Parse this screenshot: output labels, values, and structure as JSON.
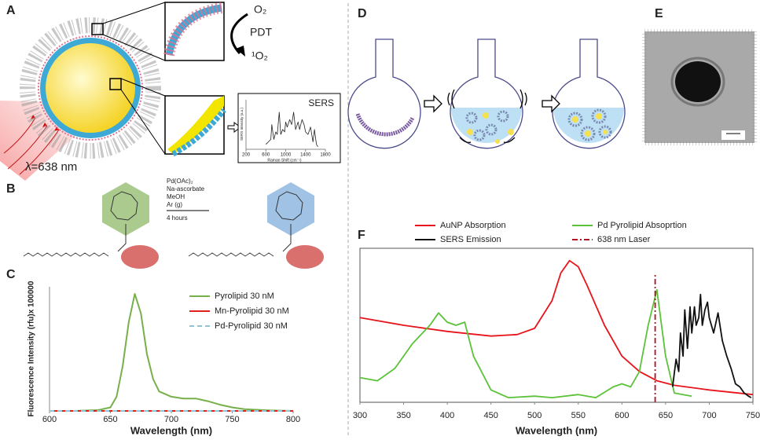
{
  "figure": {
    "panel_labels": [
      "A",
      "B",
      "C",
      "D",
      "E",
      "F"
    ],
    "a_o2": "O₂",
    "a_pdt": "PDT",
    "a_singlet": "¹O₂",
    "a_laser": "λ=638 nm",
    "b_reagents": [
      "Pd(OAc)₂",
      "Na-ascorbate",
      "MeOH",
      "Ar (g)"
    ],
    "b_time": "4 hours"
  },
  "chart_data": [
    {
      "type": "line",
      "xlabel": "Wavelength (nm)",
      "ylabel": "Fluorescence Intensity (rfu)x 100000",
      "x": [
        600,
        620,
        640,
        650,
        655,
        660,
        665,
        670,
        675,
        680,
        685,
        690,
        700,
        710,
        720,
        730,
        740,
        750,
        760,
        780,
        800
      ],
      "xlim": [
        600,
        800
      ],
      "xticks": [
        600,
        650,
        700,
        750,
        800
      ],
      "ylim": [
        0,
        7
      ],
      "legend": "upper right",
      "series": [
        {
          "name": "Pyrolipid 30 nM",
          "color": "#77b04a",
          "linestyle": "solid",
          "values": [
            0,
            0,
            0.05,
            0.2,
            0.8,
            2.5,
            5.0,
            6.6,
            5.5,
            3.2,
            1.8,
            1.1,
            0.8,
            0.7,
            0.7,
            0.55,
            0.35,
            0.2,
            0.1,
            0.03,
            0
          ]
        },
        {
          "name": "Mn-Pyrolipid 30 nM",
          "color": "#e0201b",
          "linestyle": "solid",
          "values": [
            0,
            0,
            0,
            0,
            0,
            0,
            0,
            0,
            0,
            0,
            0,
            0,
            0,
            0,
            0,
            0,
            0,
            0,
            0,
            0,
            0
          ]
        },
        {
          "name": "Pd-Pyrolipid 30 nM",
          "color": "#8fc3cf",
          "linestyle": "dashed",
          "values": [
            0,
            0,
            0,
            0,
            0,
            0,
            0,
            0,
            0,
            0,
            0,
            0,
            0,
            0,
            0,
            0,
            0,
            0,
            0,
            0,
            0
          ]
        }
      ]
    },
    {
      "type": "line",
      "xlabel": "Wavelength (nm)",
      "xlim": [
        300,
        750
      ],
      "xticks": [
        300,
        350,
        400,
        450,
        500,
        550,
        600,
        650,
        700,
        750
      ],
      "ylim": [
        0,
        1
      ],
      "legend": "top",
      "series": [
        {
          "name": "AuNP Absorption",
          "color": "#e8141b",
          "linestyle": "solid",
          "x": [
            300,
            350,
            400,
            450,
            480,
            500,
            520,
            530,
            540,
            550,
            560,
            580,
            600,
            620,
            640,
            660,
            700,
            750
          ],
          "values": [
            0.55,
            0.5,
            0.46,
            0.43,
            0.44,
            0.48,
            0.66,
            0.84,
            0.92,
            0.88,
            0.76,
            0.5,
            0.3,
            0.2,
            0.14,
            0.11,
            0.08,
            0.05
          ]
        },
        {
          "name": "Pd Pyrolipid Absoprtion",
          "color": "#5cc23a",
          "linestyle": "solid",
          "x": [
            300,
            320,
            340,
            360,
            380,
            390,
            400,
            410,
            420,
            430,
            450,
            470,
            500,
            520,
            550,
            570,
            590,
            600,
            610,
            620,
            630,
            640,
            650,
            660,
            680
          ],
          "values": [
            0.16,
            0.14,
            0.22,
            0.38,
            0.5,
            0.58,
            0.52,
            0.5,
            0.52,
            0.3,
            0.08,
            0.03,
            0.04,
            0.03,
            0.05,
            0.03,
            0.1,
            0.12,
            0.1,
            0.2,
            0.5,
            0.73,
            0.3,
            0.06,
            0.04
          ]
        },
        {
          "name": "SERS Emission",
          "color": "#111111",
          "linestyle": "solid",
          "x": [
            658,
            662,
            665,
            667,
            670,
            672,
            675,
            678,
            680,
            683,
            685,
            688,
            690,
            692,
            695,
            698,
            700,
            705,
            710,
            715,
            720,
            725,
            730,
            735,
            740,
            745,
            748
          ],
          "values": [
            0.1,
            0.28,
            0.2,
            0.45,
            0.3,
            0.6,
            0.35,
            0.62,
            0.45,
            0.62,
            0.5,
            0.55,
            0.7,
            0.5,
            0.6,
            0.65,
            0.55,
            0.45,
            0.58,
            0.4,
            0.3,
            0.22,
            0.12,
            0.1,
            0.06,
            0.04,
            0.03
          ]
        },
        {
          "name": "638 nm Laser",
          "color": "#b01020",
          "linestyle": "dash-dot",
          "x": [
            638,
            638
          ],
          "values": [
            0,
            0.84
          ]
        }
      ]
    },
    {
      "type": "line",
      "title": "SERS",
      "xlabel": "Raman Shift (cm⁻¹)",
      "ylabel": "SERS Intensity (a.u.)",
      "xlim": [
        200,
        1800
      ],
      "xticks": [
        200,
        600,
        1000,
        1400,
        1800
      ],
      "ylim": [
        0,
        1
      ],
      "series": [
        {
          "color": "#222222",
          "linestyle": "solid",
          "x": [
            600,
            650,
            700,
            720,
            760,
            800,
            830,
            870,
            900,
            940,
            980,
            1000,
            1030,
            1080,
            1120,
            1160,
            1200,
            1250,
            1280,
            1330,
            1370,
            1400,
            1450,
            1500,
            1550,
            1580,
            1620,
            1650
          ],
          "values": [
            0.1,
            0.15,
            0.2,
            0.5,
            0.2,
            0.35,
            0.3,
            0.75,
            0.3,
            0.4,
            0.35,
            0.55,
            0.45,
            0.6,
            0.5,
            0.75,
            0.4,
            0.55,
            0.4,
            0.6,
            0.5,
            0.35,
            0.3,
            0.45,
            0.15,
            0.4,
            0.1,
            0.05
          ]
        }
      ]
    }
  ]
}
